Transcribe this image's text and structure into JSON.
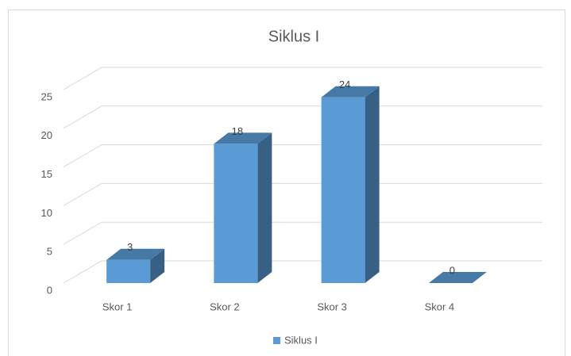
{
  "chart_data": {
    "type": "bar3d",
    "title": "Siklus I",
    "categories": [
      "Skor 1",
      "Skor 2",
      "Skor 3",
      "Skor 4"
    ],
    "series": [
      {
        "name": "Siklus I",
        "color": "#5b9bd5",
        "values": [
          3,
          18,
          24,
          0
        ]
      }
    ],
    "ylim": [
      0,
      25
    ],
    "yticks": [
      0,
      5,
      10,
      15,
      20,
      25
    ],
    "grid": true,
    "legend": "bottom"
  }
}
